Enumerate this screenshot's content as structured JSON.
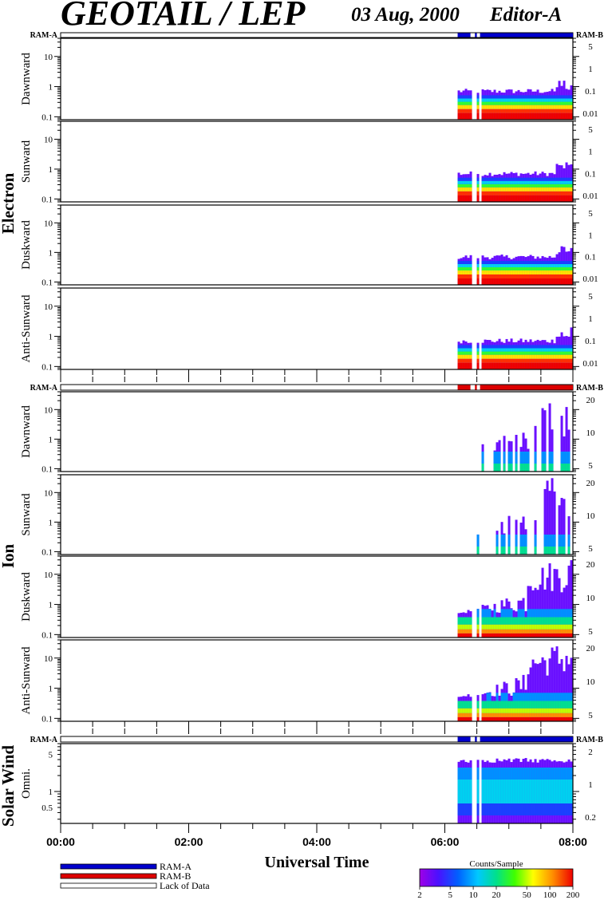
{
  "header": {
    "instrument": "GEOTAIL / LEP",
    "date": "03 Aug, 2000",
    "editor": "Editor-A"
  },
  "colors": {
    "ram_a": "#0000cc",
    "ram_b": "#dd0000",
    "frame": "#000000"
  },
  "chart_data": {
    "type": "heatmap",
    "xlabel": "Universal Time",
    "x_ticks": [
      "00:00",
      "02:00",
      "04:00",
      "06:00",
      "08:00"
    ],
    "x_range_hours": [
      0,
      8
    ],
    "data_start_hour": 6.2,
    "gaps_hours": [
      [
        6.4,
        6.47
      ],
      [
        6.5,
        6.55
      ]
    ],
    "colorbar": {
      "title": "Counts/Sample",
      "ticks": [
        "2",
        "5",
        "10",
        "20",
        "50",
        "100",
        "200"
      ],
      "scale": "log",
      "range": [
        2,
        200
      ]
    },
    "legend": [
      {
        "label": "RAM-A",
        "color": "#0000cc"
      },
      {
        "label": "RAM-B",
        "color": "#dd0000"
      },
      {
        "label": "Lack of Data",
        "color": "#ffffff"
      }
    ],
    "groups": [
      {
        "label": "Electron",
        "ram_left": "RAM-A",
        "ram_right": "RAM-B",
        "ram_mode": "A",
        "panels": [
          {
            "ylabel": "Dawnward",
            "yticks_left": [
              "10",
              "1",
              "0.1"
            ],
            "yticks_right": [
              "5",
              "1",
              "0.1",
              "0.01"
            ],
            "ylim": [
              0.08,
              40
            ]
          },
          {
            "ylabel": "Sunward",
            "yticks_left": [
              "10",
              "1",
              "0.1"
            ],
            "yticks_right": [
              "5",
              "1",
              "0.1",
              "0.01"
            ],
            "ylim": [
              0.08,
              40
            ]
          },
          {
            "ylabel": "Duskward",
            "yticks_left": [
              "10",
              "1",
              "0.1"
            ],
            "yticks_right": [
              "5",
              "1",
              "0.1",
              "0.01"
            ],
            "ylim": [
              0.08,
              40
            ]
          },
          {
            "ylabel": "Anti-Sunward",
            "yticks_left": [
              "10",
              "1",
              "0.1"
            ],
            "yticks_right": [
              "5",
              "1",
              "0.1",
              "0.01"
            ],
            "ylim": [
              0.08,
              40
            ]
          }
        ]
      },
      {
        "label": "Ion",
        "ram_left": "RAM-A",
        "ram_right": "RAM-B",
        "ram_mode": "B",
        "panels": [
          {
            "ylabel": "Dawnward",
            "yticks_left": [
              "10",
              "1",
              "0.1"
            ],
            "yticks_right": [
              "20",
              "10",
              "5"
            ],
            "ylim": [
              0.08,
              40
            ]
          },
          {
            "ylabel": "Sunward",
            "yticks_left": [
              "10",
              "1",
              "0.1"
            ],
            "yticks_right": [
              "20",
              "10",
              "5"
            ],
            "ylim": [
              0.08,
              40
            ]
          },
          {
            "ylabel": "Duskward",
            "yticks_left": [
              "10",
              "1",
              "0.1"
            ],
            "yticks_right": [
              "20",
              "10",
              "5"
            ],
            "ylim": [
              0.08,
              40
            ]
          },
          {
            "ylabel": "Anti-Sunward",
            "yticks_left": [
              "10",
              "1",
              "0.1"
            ],
            "yticks_right": [
              "20",
              "10",
              "5"
            ],
            "ylim": [
              0.08,
              40
            ]
          }
        ]
      },
      {
        "label": "Solar Wind",
        "ram_left": "RAM-A",
        "ram_right": "RAM-B",
        "ram_mode": "A",
        "panels": [
          {
            "ylabel": "Omni.",
            "yticks_left": [
              "5",
              "1",
              "0.5"
            ],
            "yticks_right": [
              "2",
              "1",
              "0.2"
            ],
            "ylim": [
              0.25,
              8
            ]
          }
        ]
      }
    ]
  }
}
